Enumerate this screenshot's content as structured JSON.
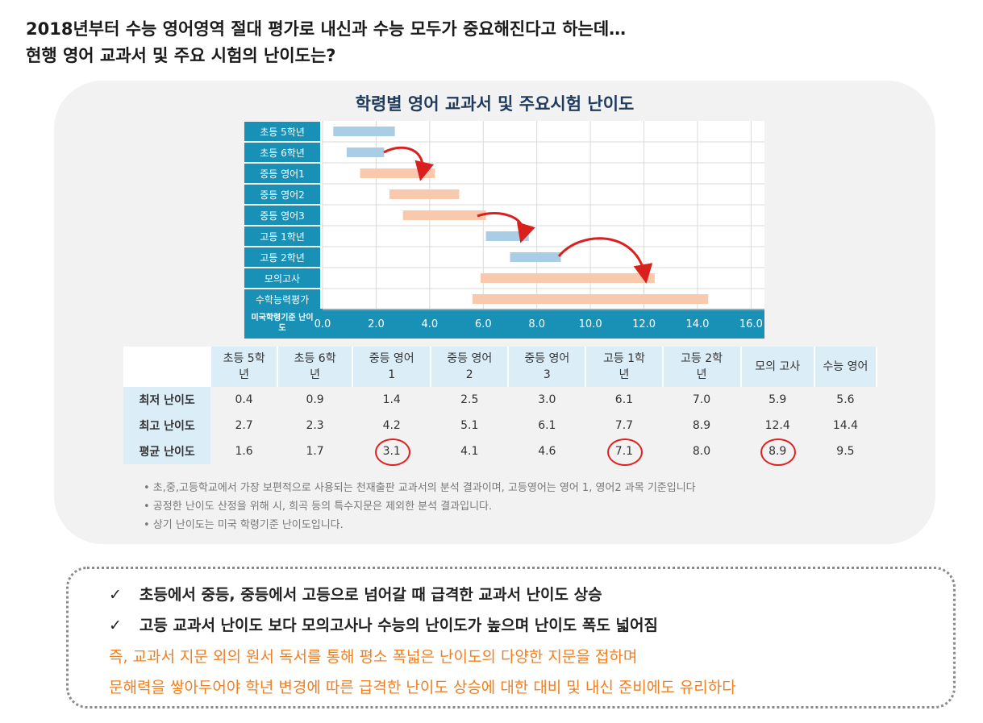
{
  "header": {
    "line1": "2018년부터 수능 영어영역 절대 평가로 내신과 수능 모두가 중요해진다고 하는데…",
    "line2": "현행 영어 교과서 및 주요 시험의 난이도는?"
  },
  "chart_data": {
    "type": "range-bar",
    "title": "학령별 영어 교과서 및 주요시험 난이도",
    "categories": [
      "초등 5학년",
      "초등 6학년",
      "중등 영어1",
      "중등 영어2",
      "중등 영어3",
      "고등 1학년",
      "고등 2학년",
      "모의고사",
      "수학능력평가"
    ],
    "low": [
      0.4,
      0.9,
      1.4,
      2.5,
      3.0,
      6.1,
      7.0,
      5.9,
      5.6
    ],
    "high": [
      2.7,
      2.3,
      4.2,
      5.1,
      6.1,
      7.7,
      8.9,
      12.4,
      14.4
    ],
    "colors": [
      "#aacde6",
      "#aacde6",
      "#f9c9ad",
      "#f9c9ad",
      "#f9c9ad",
      "#aacde6",
      "#aacde6",
      "#f9c9ad",
      "#f9c9ad"
    ],
    "xlabel": "미국학령기준 난이도",
    "xlim": [
      0,
      16.5
    ],
    "xticks": [
      {
        "value": 0,
        "label": "0.0"
      },
      {
        "value": 2,
        "label": "2.0"
      },
      {
        "value": 4,
        "label": "4.0"
      },
      {
        "value": 6,
        "label": "6.0"
      },
      {
        "value": 8,
        "label": "8.0"
      },
      {
        "value": 10,
        "label": "10.0"
      },
      {
        "value": 12,
        "label": "12.0"
      },
      {
        "value": 14,
        "label": "14.0"
      },
      {
        "value": 16,
        "label": "16.0"
      }
    ],
    "grid": true
  },
  "table": {
    "columns": [
      "초등 5학년",
      "초등 6학년",
      "중등 영어1",
      "중등 영어2",
      "중등 영어3",
      "고등 1학년",
      "고등 2학년",
      "모의 고사",
      "수능 영어"
    ],
    "rows": [
      [
        "최저 난이도",
        "0.4",
        "0.9",
        "1.4",
        "2.5",
        "3.0",
        "6.1",
        "7.0",
        "5.9",
        "5.6"
      ],
      [
        "최고 난이도",
        "2.7",
        "2.3",
        "4.2",
        "5.1",
        "6.1",
        "7.7",
        "8.9",
        "12.4",
        "14.4"
      ],
      [
        "평균 난이도",
        "1.6",
        "1.7",
        "3.1",
        "4.1",
        "4.6",
        "7.1",
        "8.0",
        "8.9",
        "9.5"
      ]
    ]
  },
  "notes": [
    "• 초,중,고등학교에서 가장 보편적으로 사용되는 천재출판 교과서의 분석 결과이며, 고등영어는 영어 1, 영어2 과목 기준입니다",
    "• 공정한 난이도 산정을 위해 시, 희곡 등의 특수지문은 제외한 분석 결과입니다.",
    "• 상기 난이도는 미국 학령기준 난이도입니다."
  ],
  "summary": {
    "checks": [
      "초등에서 중등, 중등에서 고등으로 넘어갈 때  급격한 교과서 난이도 상승",
      "고등 교과서 난이도 보다 모의고사나 수능의 난이도가 높으며 난이도 폭도 넓어짐"
    ],
    "conclusion": [
      "즉, 교과서 지문 외의 원서 독서를 통해 평소 폭넓은 난이도의 다양한 지문을 접하며",
      "문해력을 쌓아두어야 학년 변경에 따른 급격한 난이도 상승에 대한 대비 및 내신 준비에도 유리하다"
    ]
  }
}
